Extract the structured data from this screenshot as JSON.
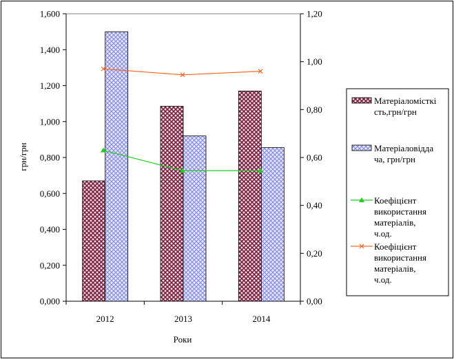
{
  "chart_data": {
    "type": "bar",
    "categories": [
      "2012",
      "2013",
      "2014"
    ],
    "xlabel": "Роки",
    "ylabel": "грн/грн",
    "ylim": [
      0,
      1.6
    ],
    "y2lim": [
      0,
      1.2
    ],
    "y_ticks": [
      "0,000",
      "0,200",
      "0,400",
      "0,600",
      "0,800",
      "1,000",
      "1,200",
      "1,400",
      "1,600"
    ],
    "y2_ticks": [
      "0,00",
      "0,20",
      "0,40",
      "0,60",
      "0,80",
      "1,00",
      "1,20"
    ],
    "legend_position": "right",
    "series": [
      {
        "name": "Матеріаломісткі сть,грн/грн",
        "type": "bar",
        "axis": "left",
        "values": [
          0.67,
          1.085,
          1.17
        ],
        "color": "#7a1f3d",
        "legend_lines": [
          "Матеріаломісткі",
          "сть,грн/грн"
        ]
      },
      {
        "name": "Матеріаловіддача, грн/грн",
        "type": "bar",
        "axis": "left",
        "values": [
          1.5,
          0.92,
          0.855
        ],
        "color": "#8a8fe0",
        "legend_lines": [
          "Матеріаловідда",
          "ча, грн/грн"
        ]
      },
      {
        "name": "Коефіцієнт використання матеріалів, ч.од.",
        "type": "line",
        "axis": "right",
        "values": [
          0.63,
          0.545,
          0.545
        ],
        "color": "#22cc22",
        "marker": "triangle",
        "legend_lines": [
          "Коефіцієнт",
          "використання",
          "матеріалів,",
          "ч.од."
        ]
      },
      {
        "name": "Коефіцієнт використання матеріалів, ч.од.",
        "type": "line",
        "axis": "right",
        "values": [
          0.97,
          0.945,
          0.96
        ],
        "color": "#ff6622",
        "marker": "x",
        "legend_lines": [
          "Коефіцієнт",
          "використання",
          "матеріалів,",
          "ч.од."
        ]
      }
    ]
  }
}
